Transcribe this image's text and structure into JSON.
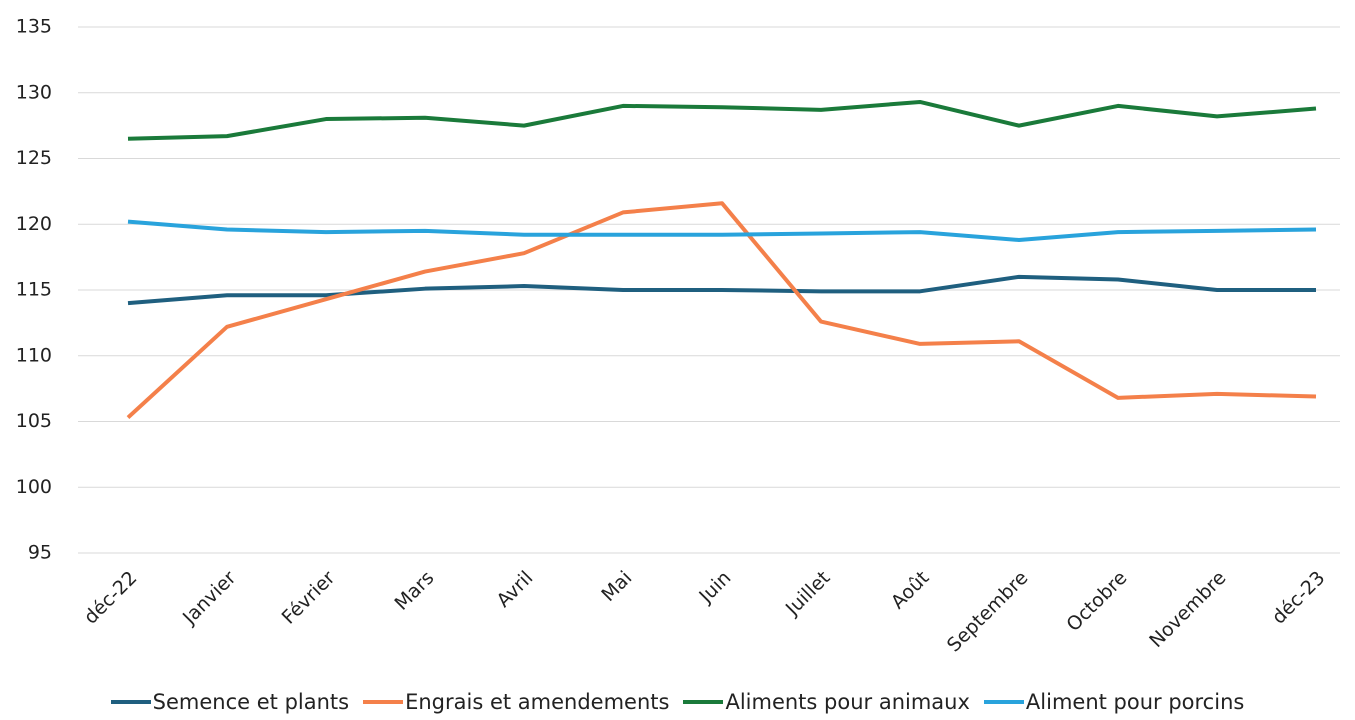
{
  "chart_data": {
    "type": "line",
    "categories": [
      "déc-22",
      "Janvier",
      "Février",
      "Mars",
      "Avril",
      "Mai",
      "Juin",
      "Juillet",
      "Août",
      "Septembre",
      "Octobre",
      "Novembre",
      "déc-23"
    ],
    "series": [
      {
        "name": "Semence et plants",
        "color": "#1f5f7f",
        "values": [
          114.0,
          114.6,
          114.6,
          115.1,
          115.3,
          115.0,
          115.0,
          114.9,
          114.9,
          116.0,
          115.8,
          115.0,
          115.0
        ]
      },
      {
        "name": "Engrais et amendements",
        "color": "#f4804a",
        "values": [
          105.3,
          112.2,
          114.3,
          116.4,
          117.8,
          120.9,
          121.6,
          112.6,
          110.9,
          111.1,
          106.8,
          107.1,
          106.9
        ]
      },
      {
        "name": "Aliments pour animaux",
        "color": "#1a7a3a",
        "values": [
          126.5,
          126.7,
          128.0,
          128.1,
          127.5,
          129.0,
          128.9,
          128.7,
          129.3,
          127.5,
          129.0,
          128.2,
          128.8
        ]
      },
      {
        "name": "Aliment pour porcins",
        "color": "#29a3dc",
        "values": [
          120.2,
          119.6,
          119.4,
          119.5,
          119.2,
          119.2,
          119.2,
          119.3,
          119.4,
          118.8,
          119.4,
          119.5,
          119.6
        ]
      }
    ],
    "ylim": [
      95,
      135
    ],
    "yticks": [
      95,
      100,
      105,
      110,
      115,
      120,
      125,
      130,
      135
    ],
    "grid": true,
    "legend": "bottom"
  }
}
